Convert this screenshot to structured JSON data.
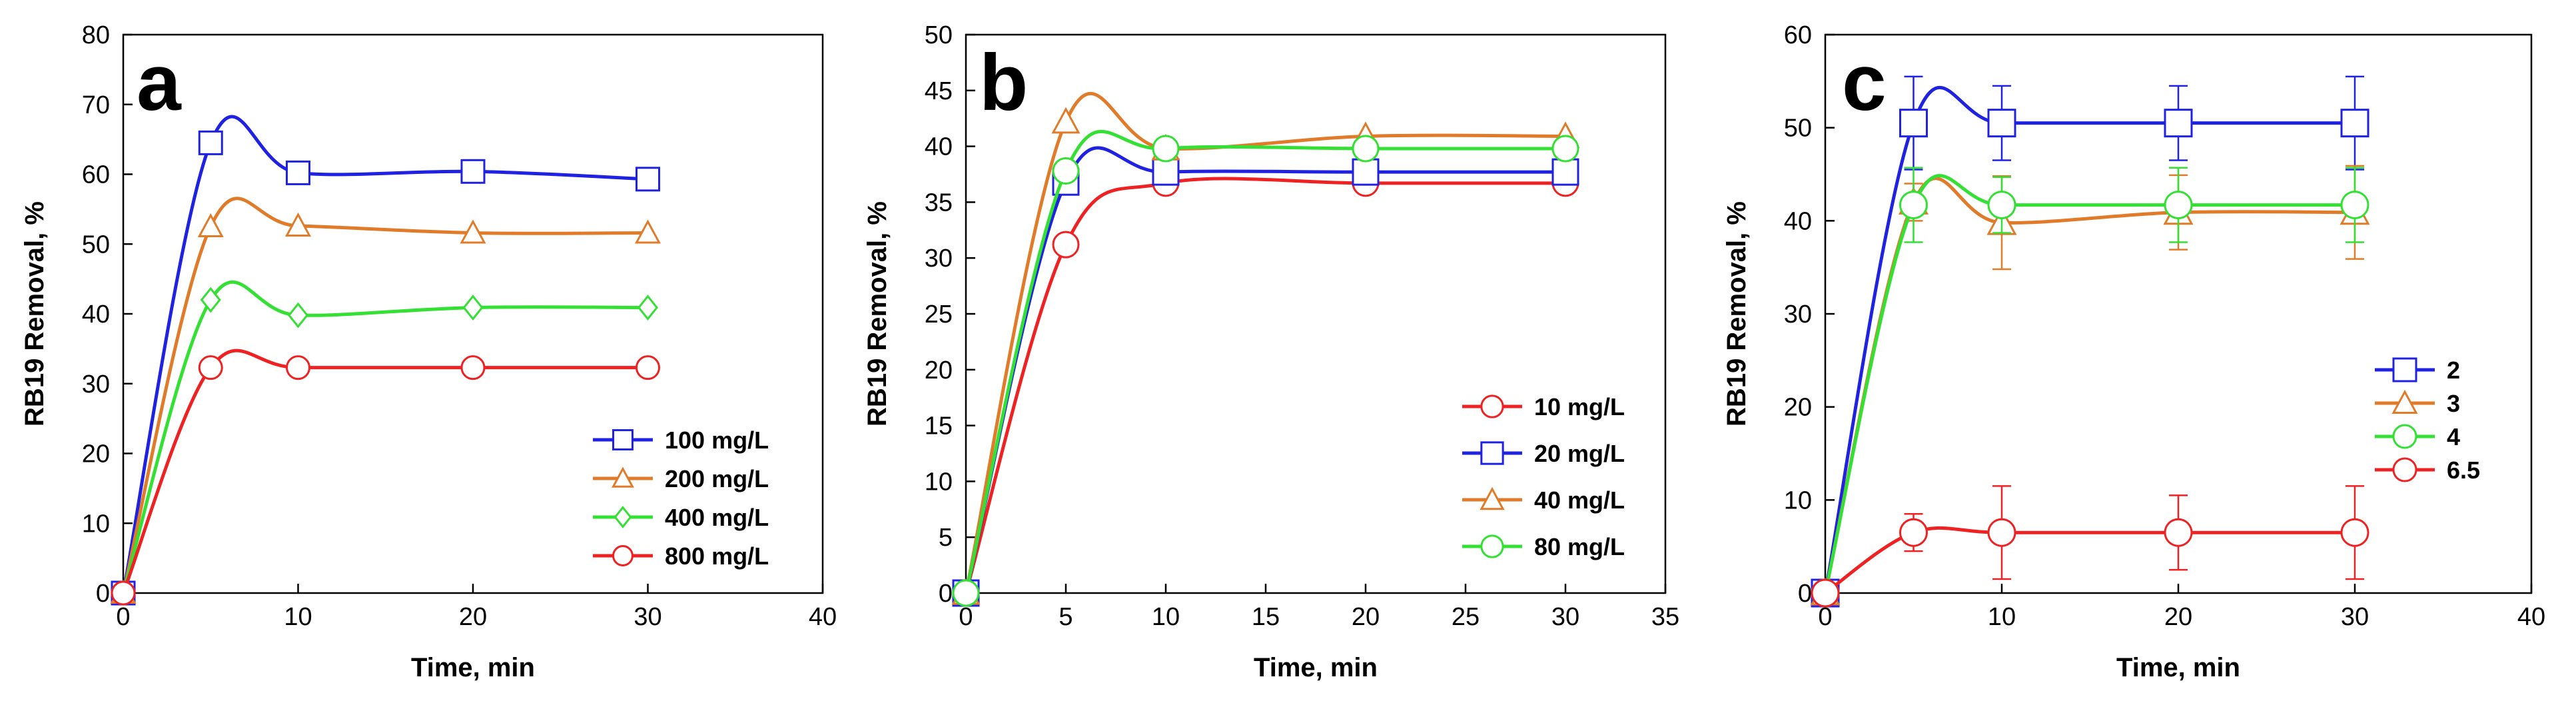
{
  "chart_data": [
    {
      "type": "line",
      "panel": "a",
      "xlabel": "Time, min",
      "ylabel": "RB19 Removal, %",
      "xlim": [
        0,
        40
      ],
      "ylim": [
        0,
        80
      ],
      "xticks": [
        "0",
        "10",
        "20",
        "30",
        "40"
      ],
      "yticks": [
        "0",
        "10",
        "20",
        "30",
        "40",
        "50",
        "60",
        "70",
        "80"
      ],
      "legend_position": "lower-right",
      "x": [
        0,
        5,
        10,
        20,
        30
      ],
      "series": [
        {
          "name": "100 mg/L",
          "color": "#1f22e0",
          "marker": "square",
          "values": [
            0,
            64.5,
            60.2,
            60.4,
            59.3
          ]
        },
        {
          "name": "200 mg/L",
          "color": "#e07b2a",
          "marker": "triangle",
          "values": [
            0,
            52.5,
            52.6,
            51.6,
            51.6
          ]
        },
        {
          "name": "400 mg/L",
          "color": "#33e033",
          "marker": "diamond",
          "values": [
            0,
            42,
            39.8,
            40.9,
            40.9
          ]
        },
        {
          "name": "800 mg/L",
          "color": "#ee2222",
          "marker": "circle",
          "values": [
            0,
            32.3,
            32.3,
            32.3,
            32.3
          ]
        }
      ]
    },
    {
      "type": "line",
      "panel": "b",
      "xlabel": "Time, min",
      "ylabel": "RB19 Removal, %",
      "xlim": [
        0,
        35
      ],
      "ylim": [
        0,
        50
      ],
      "xticks": [
        "0",
        "5",
        "10",
        "15",
        "20",
        "25",
        "30",
        "35"
      ],
      "yticks": [
        "0",
        "5",
        "10",
        "15",
        "20",
        "25",
        "30",
        "35",
        "40",
        "45",
        "50"
      ],
      "legend_position": "lower-right",
      "x": [
        0,
        5,
        10,
        20,
        30
      ],
      "series": [
        {
          "name": "10 mg/L",
          "color": "#ee2222",
          "marker": "circle",
          "values": [
            0,
            31.2,
            36.7,
            36.7,
            36.7
          ]
        },
        {
          "name": "20 mg/L",
          "color": "#1f22e0",
          "marker": "square",
          "values": [
            0,
            36.8,
            37.7,
            37.7,
            37.7
          ]
        },
        {
          "name": "40 mg/L",
          "color": "#e07b2a",
          "marker": "triangle",
          "values": [
            0,
            42.2,
            39.8,
            40.9,
            40.9
          ]
        },
        {
          "name": "80 mg/L",
          "color": "#33e033",
          "marker": "circle",
          "values": [
            0,
            37.8,
            39.8,
            39.8,
            39.8
          ]
        }
      ]
    },
    {
      "type": "line",
      "panel": "c",
      "xlabel": "Time, min",
      "ylabel": "RB19 Removal, %",
      "xlim": [
        0,
        40
      ],
      "ylim": [
        0,
        60
      ],
      "xticks": [
        "0",
        "10",
        "20",
        "30",
        "40"
      ],
      "yticks": [
        "0",
        "10",
        "20",
        "30",
        "40",
        "50",
        "60"
      ],
      "legend_position": "lower-right",
      "x": [
        0,
        5,
        10,
        20,
        30
      ],
      "series": [
        {
          "name": "2",
          "color": "#1f22e0",
          "marker": "square",
          "values": [
            0,
            50.5,
            50.5,
            50.5,
            50.5
          ],
          "errors": [
            0,
            5,
            4,
            4,
            5
          ]
        },
        {
          "name": "3",
          "color": "#e07b2a",
          "marker": "triangle",
          "values": [
            0,
            42,
            39.8,
            40.9,
            40.9
          ],
          "errors": [
            0,
            2,
            5,
            4,
            5
          ]
        },
        {
          "name": "4",
          "color": "#33e033",
          "marker": "circle",
          "values": [
            0,
            41.7,
            41.7,
            41.7,
            41.7
          ],
          "errors": [
            0,
            4,
            3,
            4,
            4
          ]
        },
        {
          "name": "6.5",
          "color": "#ee2222",
          "marker": "circle",
          "values": [
            0,
            6.5,
            6.5,
            6.5,
            6.5
          ],
          "errors": [
            0,
            2,
            5,
            4,
            5
          ]
        }
      ]
    }
  ]
}
